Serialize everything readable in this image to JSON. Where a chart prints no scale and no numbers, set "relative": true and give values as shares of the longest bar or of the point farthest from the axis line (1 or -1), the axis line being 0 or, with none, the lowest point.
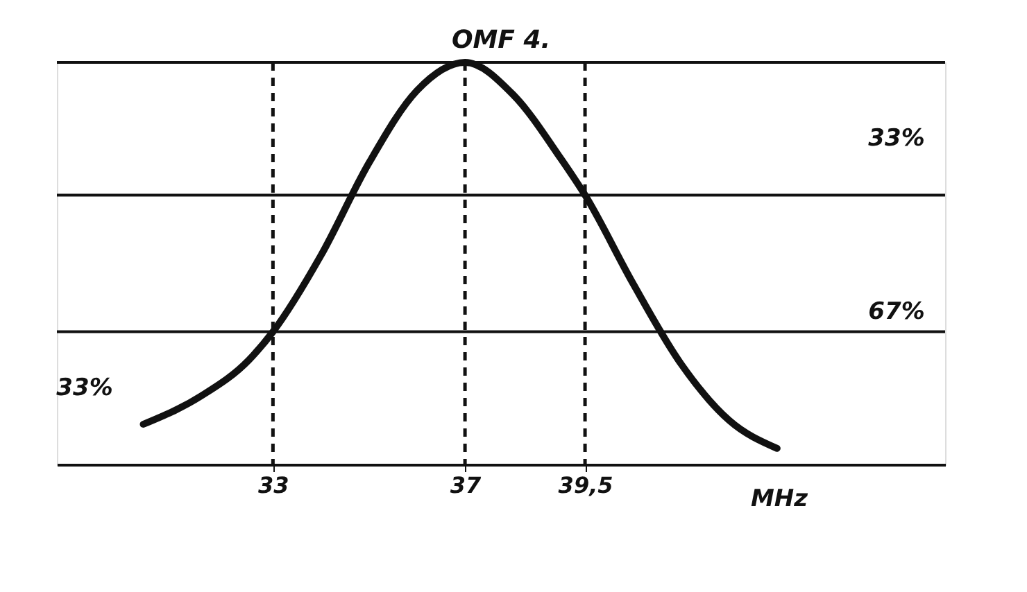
{
  "chart_data": {
    "type": "line",
    "title": "OMF 4.",
    "xlabel": "MHz",
    "relative": true,
    "x": [
      30.3,
      31.5,
      32.5,
      33,
      34,
      35,
      36,
      37,
      38,
      39,
      39.5,
      40.5,
      41.5,
      42.5,
      43.5
    ],
    "series": [
      {
        "color": "#111111",
        "values": [
          0.1,
          0.17,
          0.26,
          0.33,
          0.52,
          0.75,
          0.93,
          1.0,
          0.92,
          0.76,
          0.67,
          0.45,
          0.25,
          0.11,
          0.04
        ]
      }
    ],
    "xlim": [
      28.5,
      47
    ],
    "xticks": [
      33,
      37,
      {
        "value": 39.5,
        "label": "39,5"
      }
    ],
    "ref_lines": [
      {
        "axis": "x",
        "value": 33,
        "line_style": "dashed"
      },
      {
        "axis": "x",
        "value": 37,
        "line_style": "dashed"
      },
      {
        "axis": "x",
        "value": 39.5,
        "line_style": "dashed"
      },
      {
        "axis": "y",
        "value": 0.33
      },
      {
        "axis": "y",
        "value": 0.67
      },
      {
        "axis": "y",
        "value": 1.0
      }
    ],
    "annotations": [
      "33%",
      "33%",
      "67%"
    ],
    "grid": false,
    "marker": "none",
    "line_style": "solid"
  }
}
